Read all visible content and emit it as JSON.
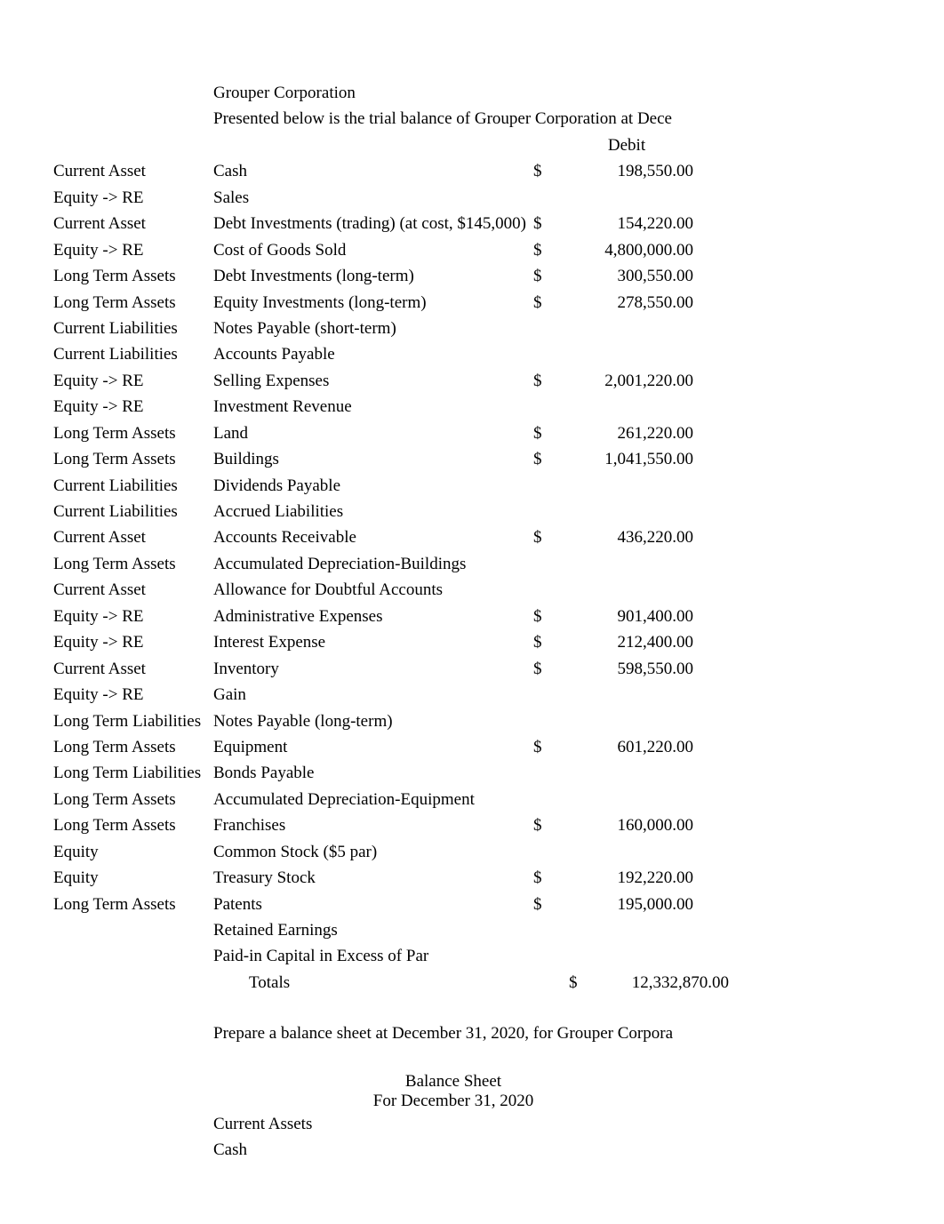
{
  "company": "Grouper Corporation",
  "intro": "Presented below is the trial balance of Grouper Corporation at Dece",
  "debitHeader": "Debit",
  "rows": [
    {
      "cat": "Current Asset",
      "desc": "Cash",
      "sym": "$",
      "amt": "198,550.00"
    },
    {
      "cat": "Equity -> RE",
      "desc": "Sales",
      "sym": "",
      "amt": ""
    },
    {
      "cat": "Current Asset",
      "desc": "Debt Investments (trading) (at cost, $145,000)",
      "sym": "$",
      "amt": "154,220.00"
    },
    {
      "cat": "Equity -> RE",
      "desc": "Cost of Goods Sold",
      "sym": "$",
      "amt": "4,800,000.00"
    },
    {
      "cat": "Long Term Assets",
      "desc": "Debt Investments (long-term)",
      "sym": "$",
      "amt": "300,550.00"
    },
    {
      "cat": "Long Term Assets",
      "desc": "Equity Investments (long-term)",
      "sym": "$",
      "amt": "278,550.00"
    },
    {
      "cat": "Current Liabilities",
      "desc": "Notes Payable (short-term)",
      "sym": "",
      "amt": ""
    },
    {
      "cat": "Current Liabilities",
      "desc": "Accounts Payable",
      "sym": "",
      "amt": ""
    },
    {
      "cat": "Equity -> RE",
      "desc": "Selling Expenses",
      "sym": "$",
      "amt": "2,001,220.00"
    },
    {
      "cat": "Equity -> RE",
      "desc": "Investment Revenue",
      "sym": "",
      "amt": ""
    },
    {
      "cat": "Long Term Assets",
      "desc": "Land",
      "sym": "$",
      "amt": "261,220.00"
    },
    {
      "cat": "Long Term Assets",
      "desc": "Buildings",
      "sym": "$",
      "amt": "1,041,550.00"
    },
    {
      "cat": "Current Liabilities",
      "desc": "Dividends Payable",
      "sym": "",
      "amt": ""
    },
    {
      "cat": "Current Liabilities",
      "desc": "Accrued Liabilities",
      "sym": "",
      "amt": ""
    },
    {
      "cat": "Current Asset",
      "desc": "Accounts Receivable",
      "sym": "$",
      "amt": "436,220.00"
    },
    {
      "cat": "Long Term Assets",
      "desc": "Accumulated Depreciation-Buildings",
      "sym": "",
      "amt": ""
    },
    {
      "cat": "Current Asset",
      "desc": "Allowance for Doubtful Accounts",
      "sym": "",
      "amt": ""
    },
    {
      "cat": "Equity -> RE",
      "desc": "Administrative Expenses",
      "sym": "$",
      "amt": "901,400.00"
    },
    {
      "cat": "Equity -> RE",
      "desc": "Interest Expense",
      "sym": "$",
      "amt": "212,400.00"
    },
    {
      "cat": "Current Asset",
      "desc": "Inventory",
      "sym": "$",
      "amt": "598,550.00"
    },
    {
      "cat": "Equity -> RE",
      "desc": "Gain",
      "sym": "",
      "amt": ""
    },
    {
      "cat": "Long Term Liabilities",
      "desc": "Notes Payable (long-term)",
      "sym": "",
      "amt": ""
    },
    {
      "cat": "Long Term Assets",
      "desc": "Equipment",
      "sym": "$",
      "amt": "601,220.00"
    },
    {
      "cat": "Long Term Liabilities",
      "desc": "Bonds Payable",
      "sym": "",
      "amt": ""
    },
    {
      "cat": "Long Term Assets",
      "desc": "Accumulated Depreciation-Equipment",
      "sym": "",
      "amt": ""
    },
    {
      "cat": "Long Term Assets",
      "desc": "Franchises",
      "sym": "$",
      "amt": "160,000.00"
    },
    {
      "cat": "Equity",
      "desc": "Common Stock ($5 par)",
      "sym": "",
      "amt": ""
    },
    {
      "cat": "Equity",
      "desc": "Treasury Stock",
      "sym": "$",
      "amt": "192,220.00"
    },
    {
      "cat": "Long Term Assets",
      "desc": "Patents",
      "sym": "$",
      "amt": "195,000.00"
    },
    {
      "cat": "",
      "desc": "Retained Earnings",
      "sym": "",
      "amt": ""
    },
    {
      "cat": "",
      "desc": "Paid-in Capital in Excess of Par",
      "sym": "",
      "amt": ""
    }
  ],
  "totalsLabel": "Totals",
  "totalsSym": "$",
  "totalsAmt": "12,332,870.00",
  "prepareLine": "Prepare a balance sheet at December 31, 2020, for Grouper Corpora",
  "bs": {
    "title": "Balance Sheet",
    "date": "For  December 31, 2020",
    "currentAssets": "Current Assets",
    "cash": "Cash"
  }
}
